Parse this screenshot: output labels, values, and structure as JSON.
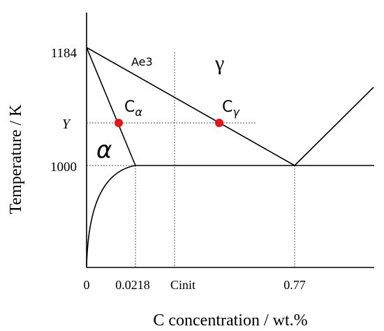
{
  "axes": {
    "y_label": "Temperature / K",
    "x_label": "C concentration / wt.%",
    "y_ticks": [
      "1184",
      "Y",
      "1000"
    ],
    "x_ticks": [
      "0",
      "0.0218",
      "Cinit",
      "0.77"
    ]
  },
  "regions": {
    "line_label": "Ae3",
    "gamma": "γ",
    "alpha": "α"
  },
  "points": [
    {
      "label": "C",
      "subscript": "α"
    },
    {
      "label": "C",
      "subscript": "γ"
    }
  ]
}
